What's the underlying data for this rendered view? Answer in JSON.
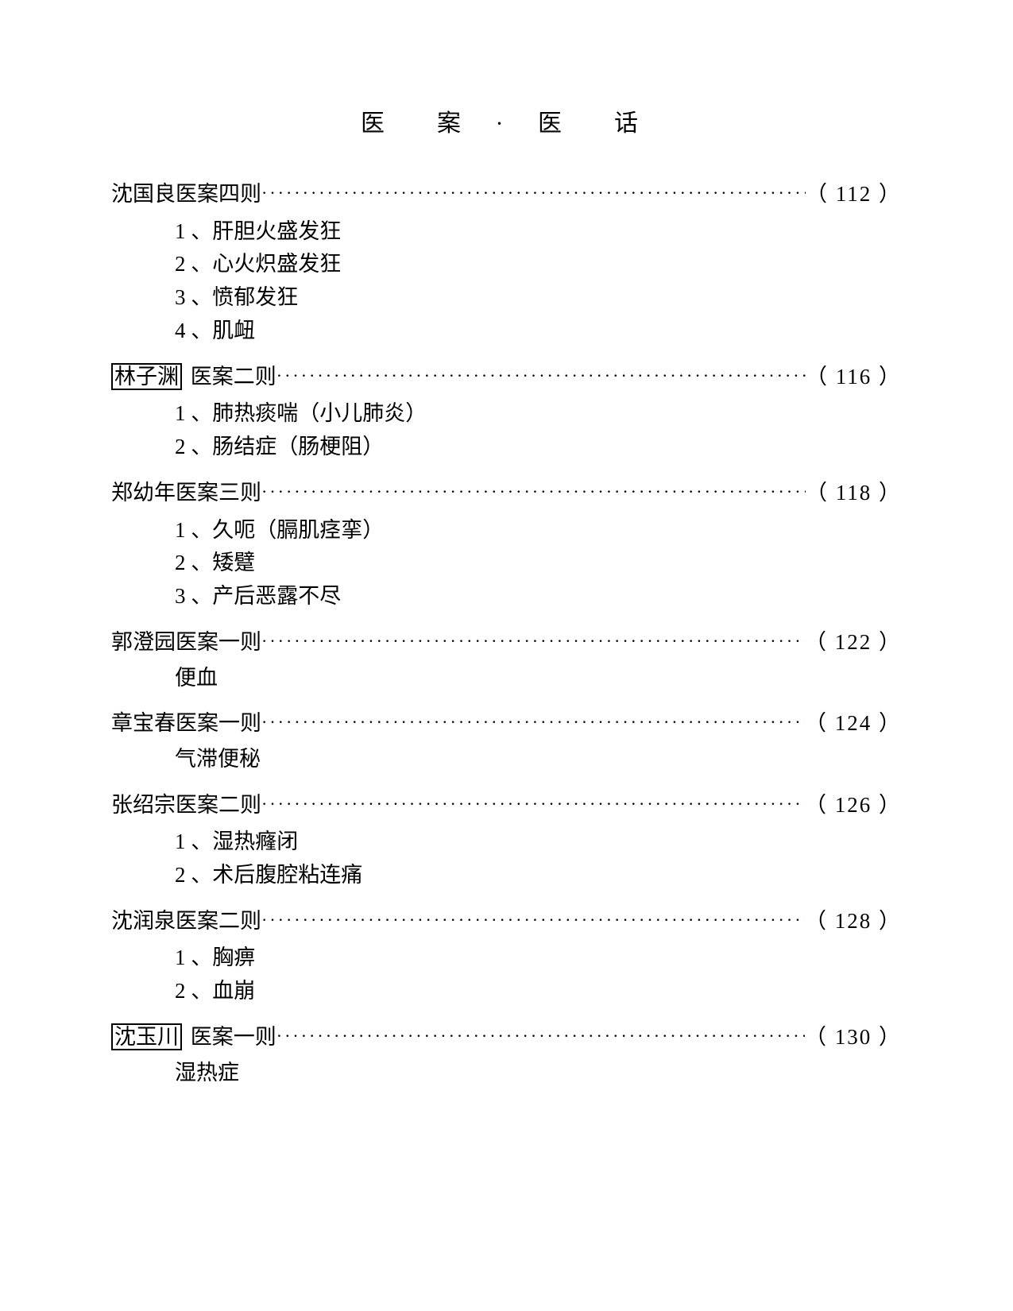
{
  "section_title": "医　案 · 医　话",
  "entries": [
    {
      "title_prefix": "",
      "title": "沈国良医案四则",
      "boxed": false,
      "page": "（ 112 ）",
      "subs": [
        "1 、肝胆火盛发狂",
        "2 、心火炽盛发狂",
        "3 、愤郁发狂",
        "4 、肌衄"
      ]
    },
    {
      "title_prefix": "林子渊",
      "title": " 医案二则 ",
      "boxed": true,
      "page": "（ 116 ）",
      "subs": [
        "1 、肺热痰喘（小儿肺炎）",
        "2 、肠结症（肠梗阻）"
      ]
    },
    {
      "title_prefix": "",
      "title": "郑幼年医案三则",
      "boxed": false,
      "page": "（ 118 ）",
      "subs": [
        "1 、久呃（膈肌痉挛）",
        "2 、矮躄",
        "3 、产后恶露不尽"
      ]
    },
    {
      "title_prefix": "",
      "title": "郭澄园医案一则",
      "boxed": false,
      "page": "（ 122 ）",
      "single": "便血"
    },
    {
      "title_prefix": "",
      "title": "章宝春医案一则",
      "boxed": false,
      "page": "（ 124 ）",
      "single": "气滞便秘"
    },
    {
      "title_prefix": "",
      "title": "张绍宗医案二则",
      "boxed": false,
      "page": "（ 126 ）",
      "subs": [
        "1 、湿热癃闭",
        "2 、术后腹腔粘连痛"
      ]
    },
    {
      "title_prefix": "",
      "title": "沈润泉医案二则",
      "boxed": false,
      "page": "（ 128 ）",
      "subs": [
        "1 、胸痹",
        "2 、血崩"
      ]
    },
    {
      "title_prefix": "沈玉川",
      "title": " 医案一则 ",
      "boxed": true,
      "page": "（ 130 ）",
      "single": "湿热症"
    }
  ]
}
